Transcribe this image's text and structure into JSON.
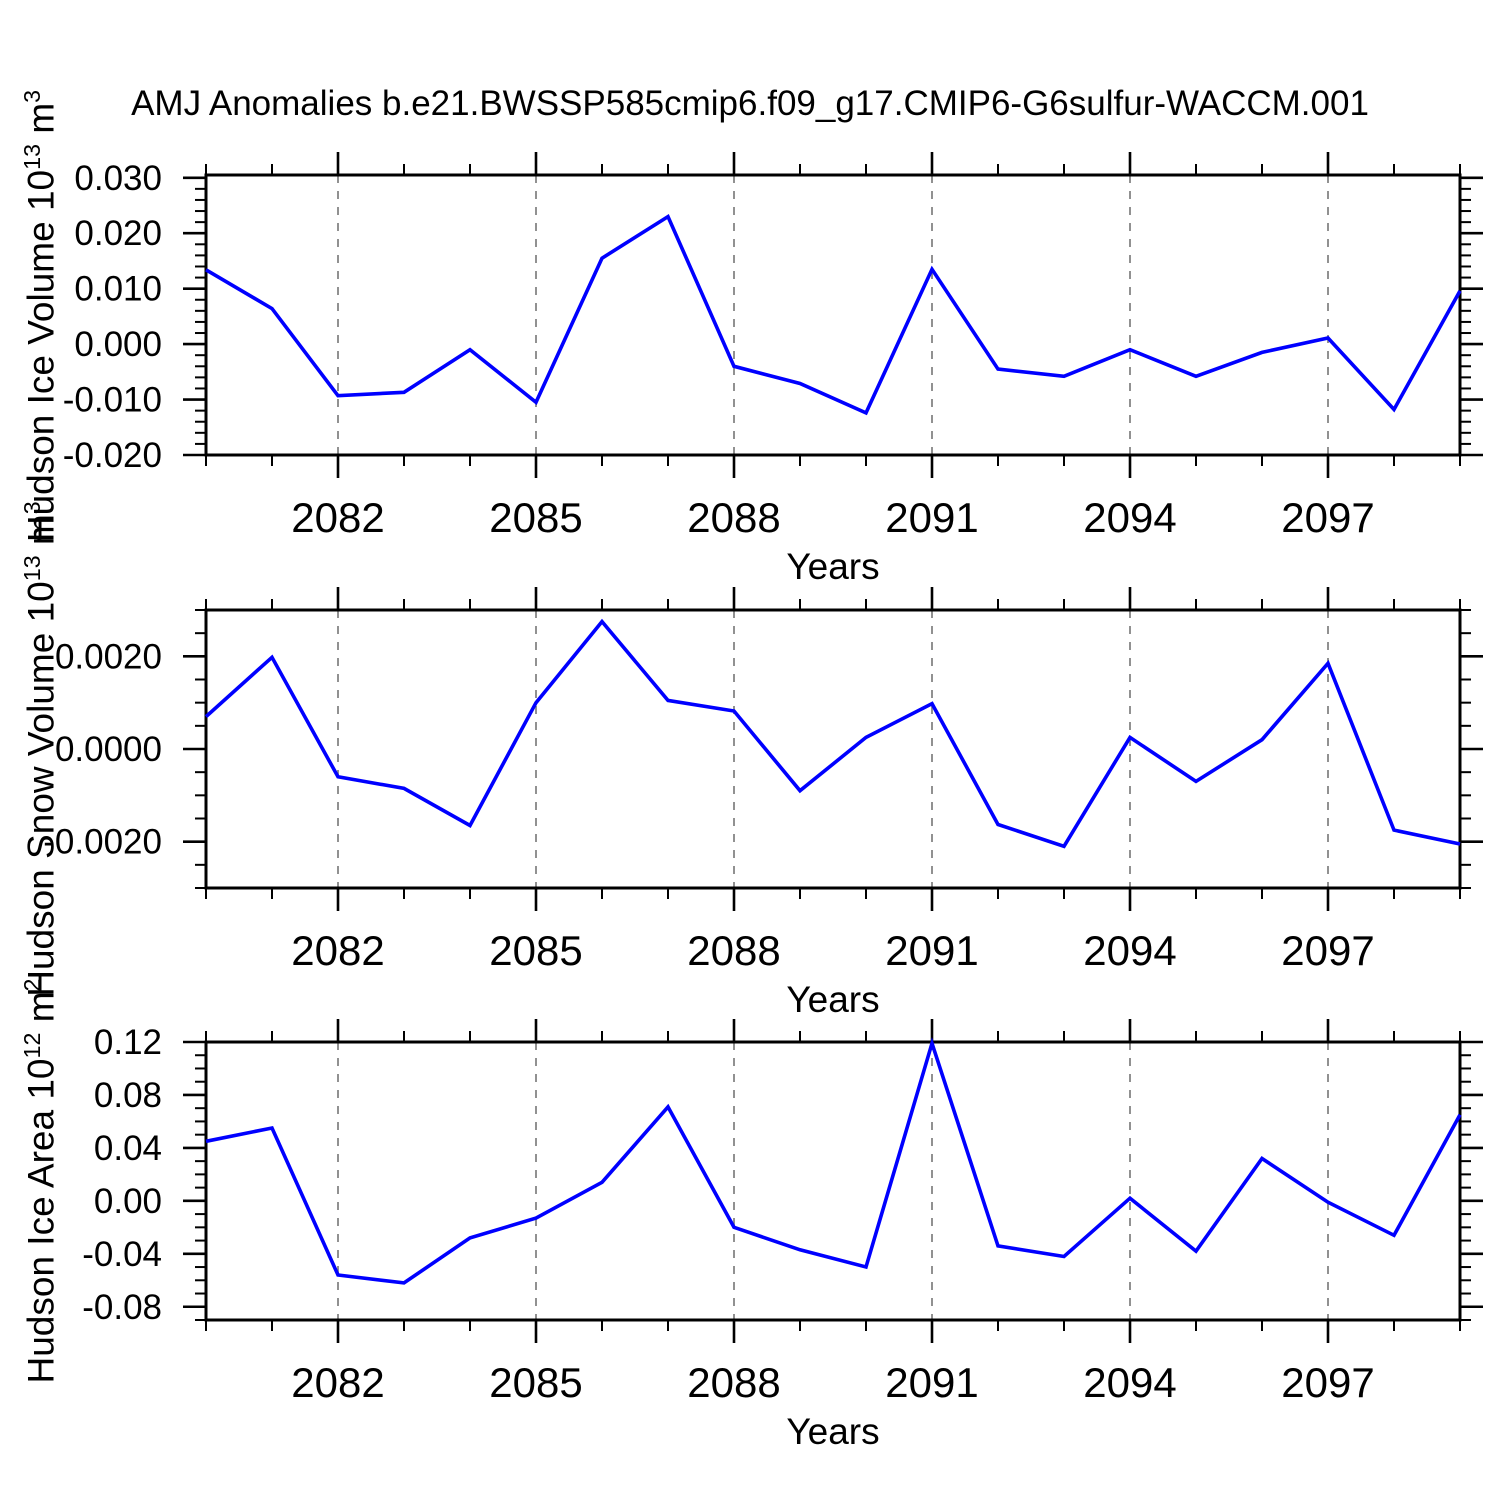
{
  "title": "AMJ Anomalies b.e21.BWSSP585cmip6.f09_g17.CMIP6-G6sulfur-WACCM.001",
  "colors": {
    "line": "#0000ff",
    "axis": "#000000",
    "grid": "#858585",
    "text": "#000000",
    "background": "#ffffff"
  },
  "xaxis": {
    "label": "Years",
    "range": [
      2080,
      2099
    ],
    "labeled_ticks": [
      2082,
      2085,
      2088,
      2091,
      2094,
      2097
    ]
  },
  "chart_data": [
    {
      "type": "line",
      "name": "hudson-ice-volume",
      "ylabel": {
        "text": "Hudson Ice Volume 10",
        "sup1": "13",
        "unit": " m",
        "sup2": "3"
      },
      "x": [
        2080,
        2081,
        2082,
        2083,
        2084,
        2085,
        2086,
        2087,
        2088,
        2089,
        2090,
        2091,
        2092,
        2093,
        2094,
        2095,
        2096,
        2097,
        2098,
        2099
      ],
      "values": [
        0.0134,
        0.0064,
        -0.0093,
        -0.0087,
        -0.001,
        -0.0105,
        0.0155,
        0.023,
        -0.004,
        -0.0071,
        -0.0124,
        0.0135,
        -0.0045,
        -0.0058,
        -0.001,
        -0.0058,
        -0.0015,
        0.0011,
        -0.0118,
        0.0096
      ],
      "xlim": [
        2080,
        2099
      ],
      "ylim": [
        -0.02,
        0.0305
      ],
      "yticks_major": [
        0.03,
        0.02,
        0.01,
        0.0,
        -0.01,
        -0.02
      ],
      "ytick_labels": [
        "0.030",
        "0.020",
        "0.010",
        "0.000",
        "-0.010",
        "-0.020"
      ],
      "yminor_step": 0.002,
      "grid": "vertical-dashed"
    },
    {
      "type": "line",
      "name": "hudson-snow-volume",
      "ylabel": {
        "text": "Hudson Snow Volume 10",
        "sup1": "13",
        "unit": " m",
        "sup2": "3"
      },
      "x": [
        2080,
        2081,
        2082,
        2083,
        2084,
        2085,
        2086,
        2087,
        2088,
        2089,
        2090,
        2091,
        2092,
        2093,
        2094,
        2095,
        2096,
        2097,
        2098,
        2099
      ],
      "values": [
        0.0007,
        0.00198,
        -0.0006,
        -0.00085,
        -0.00165,
        0.001,
        0.00275,
        0.00105,
        0.00082,
        -0.0009,
        0.00025,
        0.00098,
        -0.00163,
        -0.0021,
        0.00025,
        -0.0007,
        0.0002,
        0.00185,
        -0.00175,
        -0.00205
      ],
      "xlim": [
        2080,
        2099
      ],
      "ylim": [
        -0.003,
        0.003
      ],
      "yticks_major": [
        0.002,
        0.0,
        -0.002
      ],
      "ytick_labels": [
        "0.0020",
        "0.0000",
        "-0.0020"
      ],
      "yminor_step": 0.0005,
      "grid": "vertical-dashed"
    },
    {
      "type": "line",
      "name": "hudson-ice-area",
      "ylabel": {
        "text": "Hudson Ice Area 10",
        "sup1": "12",
        "unit": " m",
        "sup2": "2"
      },
      "x": [
        2080,
        2081,
        2082,
        2083,
        2084,
        2085,
        2086,
        2087,
        2088,
        2089,
        2090,
        2091,
        2092,
        2093,
        2094,
        2095,
        2096,
        2097,
        2098,
        2099
      ],
      "values": [
        0.045,
        0.055,
        -0.056,
        -0.062,
        -0.028,
        -0.013,
        0.014,
        0.071,
        -0.02,
        -0.037,
        -0.05,
        0.119,
        -0.034,
        -0.042,
        0.002,
        -0.038,
        0.032,
        -0.001,
        -0.026,
        0.065
      ],
      "xlim": [
        2080,
        2099
      ],
      "ylim": [
        -0.09,
        0.12
      ],
      "yticks_major": [
        0.12,
        0.08,
        0.04,
        0.0,
        -0.04,
        -0.08
      ],
      "ytick_labels": [
        "0.12",
        "0.08",
        "0.04",
        "0.00",
        "-0.04",
        "-0.08"
      ],
      "yminor_step": 0.01,
      "grid": "vertical-dashed"
    }
  ]
}
